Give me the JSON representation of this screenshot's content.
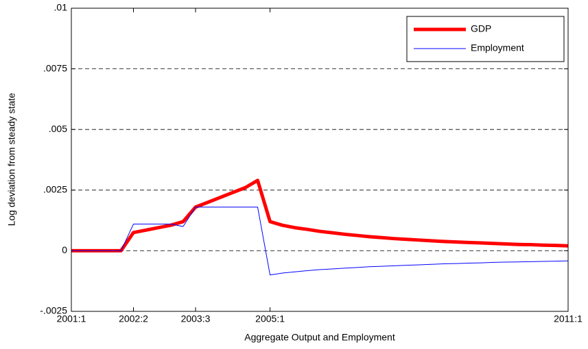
{
  "chart_data": {
    "type": "line",
    "x_label": "Aggregate Output and Employment",
    "y_label": "Log deviation from steady state",
    "categories": [
      "2001:1",
      null,
      null,
      null,
      null,
      "2002:2",
      null,
      null,
      null,
      null,
      "2003:3",
      null,
      null,
      null,
      null,
      null,
      "2005:1",
      null,
      null,
      null,
      null,
      null,
      null,
      null,
      null,
      null,
      null,
      null,
      null,
      null,
      null,
      null,
      null,
      null,
      null,
      null,
      null,
      null,
      null,
      null,
      "2011:1"
    ],
    "series": [
      {
        "name": "GDP",
        "color": "#ff0000",
        "width": 5,
        "values": [
          0,
          0,
          0,
          0,
          0,
          0.00075,
          0.00085,
          0.00095,
          0.00105,
          0.0012,
          0.0018,
          0.002,
          0.0022,
          0.0024,
          0.0026,
          0.0029,
          0.0012,
          0.00105,
          0.00095,
          0.00088,
          0.0008,
          0.00074,
          0.00068,
          0.00063,
          0.00058,
          0.00054,
          0.0005,
          0.00047,
          0.00044,
          0.00041,
          0.00038,
          0.00036,
          0.00034,
          0.00032,
          0.0003,
          0.00028,
          0.00026,
          0.00025,
          0.00023,
          0.00022,
          0.0002
        ]
      },
      {
        "name": "Employment",
        "color": "#0000ff",
        "width": 1,
        "values": [
          0,
          0,
          0,
          0,
          0,
          0.0011,
          0.0011,
          0.0011,
          0.0011,
          0.001,
          0.0018,
          0.0018,
          0.0018,
          0.0018,
          0.0018,
          0.0018,
          -0.001,
          -0.00092,
          -0.00087,
          -0.00082,
          -0.00078,
          -0.00075,
          -0.00072,
          -0.00069,
          -0.00066,
          -0.00064,
          -0.00062,
          -0.0006,
          -0.00058,
          -0.00056,
          -0.00054,
          -0.00053,
          -0.00051,
          -0.0005,
          -0.00048,
          -0.00047,
          -0.00046,
          -0.00045,
          -0.00044,
          -0.00043,
          -0.00042
        ]
      }
    ],
    "ylim": [
      -0.0025,
      0.01
    ],
    "yticks": [
      {
        "value": -0.0025,
        "label": "-.0025"
      },
      0,
      {
        "value": 0.0025,
        "label": ".0025"
      },
      {
        "value": 0.005,
        "label": ".005"
      },
      {
        "value": 0.0075,
        "label": ".0075"
      },
      {
        "value": 0.01,
        "label": ".01"
      }
    ],
    "grid": true,
    "legend": "northeast"
  }
}
